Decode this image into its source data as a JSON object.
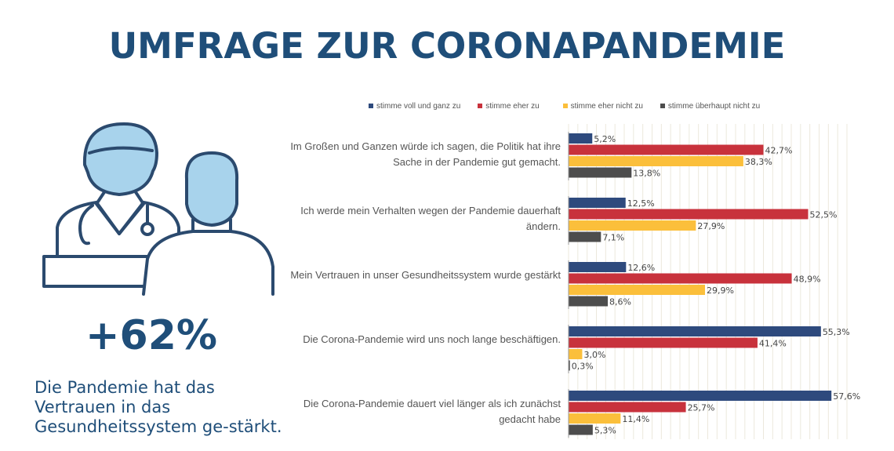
{
  "title": "UMFRAGE ZUR CORONAPANDEMIE",
  "stat": {
    "value": "+62%",
    "text": "Die Pandemie hat das Vertrauen in das Gesundheitssystem ge-stärkt."
  },
  "colors": {
    "voll": "#2e4a7d",
    "eher": "#c8323c",
    "eher_nicht": "#fbbf3b",
    "ueberhaupt_nicht": "#4d4d4d",
    "title": "#1f4e79",
    "icon_stroke": "#2b4a6e",
    "icon_fill": "#a8d3ec"
  },
  "icons": [
    "doctor-icon",
    "patient-icon"
  ],
  "chart_data": {
    "type": "bar",
    "orientation": "horizontal",
    "categories": [
      "Im Großen und Ganzen würde ich sagen, die Politik hat ihre Sache in der Pandemie gut gemacht.",
      "Ich werde mein Verhalten wegen der Pandemie dauerhaft ändern.",
      "Mein Vertrauen in unser Gesundheitssystem wurde gestärkt",
      "Die Corona-Pandemie wird uns noch lange beschäftigen.",
      "Die Corona-Pandemie dauert viel länger als ich zunächst gedacht habe"
    ],
    "series": [
      {
        "name": "stimme voll und ganz zu",
        "values": [
          5.2,
          12.5,
          12.6,
          55.3,
          57.6
        ],
        "labels": [
          "5,2%",
          "12,5%",
          "12,6%",
          "55,3%",
          "57,6%"
        ]
      },
      {
        "name": "stimme eher zu",
        "values": [
          42.7,
          52.5,
          48.9,
          41.4,
          25.7
        ],
        "labels": [
          "42,7%",
          "52,5%",
          "48,9%",
          "41,4%",
          "25,7%"
        ]
      },
      {
        "name": "stimme eher nicht zu",
        "values": [
          38.3,
          27.9,
          29.9,
          3.0,
          11.4
        ],
        "labels": [
          "38,3%",
          "27,9%",
          "29,9%",
          "3,0%",
          "11,4%"
        ]
      },
      {
        "name": "stimme überhaupt nicht zu",
        "values": [
          13.8,
          7.1,
          8.6,
          0.3,
          5.3
        ],
        "labels": [
          "13,8%",
          "7,1%",
          "8,6%",
          "0,3%",
          "5,3%"
        ]
      }
    ],
    "xlim": [
      0,
      61
    ],
    "grid": true,
    "legend": "top"
  }
}
